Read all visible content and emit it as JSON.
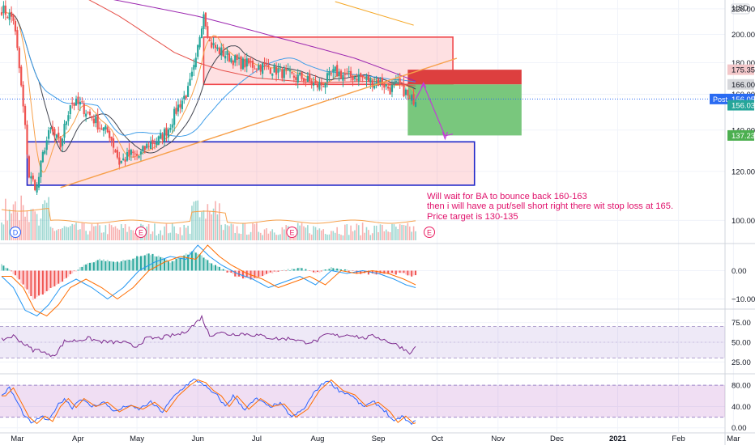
{
  "chart_data": {
    "type": "candlestick",
    "currency": "USD",
    "price_axis": {
      "range": [
        92,
        226
      ],
      "ticks": [
        100,
        120,
        140,
        160,
        180,
        200,
        220
      ],
      "scale": "log"
    },
    "months": [
      {
        "label": "Mar",
        "day": 8
      },
      {
        "label": "Apr",
        "day": 39
      },
      {
        "label": "May",
        "day": 69
      },
      {
        "label": "Jun",
        "day": 100
      },
      {
        "label": "Jul",
        "day": 130
      },
      {
        "label": "Aug",
        "day": 161
      },
      {
        "label": "Sep",
        "day": 192
      },
      {
        "label": "Oct",
        "day": 222
      },
      {
        "label": "Nov",
        "day": 253
      },
      {
        "label": "Dec",
        "day": 283
      },
      {
        "label": "2021",
        "day": 314
      },
      {
        "label": "Feb",
        "day": 345
      },
      {
        "label": "Mar",
        "day": 373
      }
    ],
    "price_key": [
      [
        0,
        220
      ],
      [
        6,
        212
      ],
      [
        11,
        152
      ],
      [
        14,
        118
      ],
      [
        18,
        113
      ],
      [
        22,
        132
      ],
      [
        25,
        140
      ],
      [
        30,
        132
      ],
      [
        35,
        155
      ],
      [
        40,
        154
      ],
      [
        45,
        148
      ],
      [
        50,
        142
      ],
      [
        55,
        138
      ],
      [
        60,
        124
      ],
      [
        66,
        128
      ],
      [
        70,
        127
      ],
      [
        75,
        133
      ],
      [
        80,
        135
      ],
      [
        85,
        141
      ],
      [
        90,
        153
      ],
      [
        95,
        162
      ],
      [
        99,
        180
      ],
      [
        101,
        200
      ],
      [
        103,
        218
      ],
      [
        106,
        194
      ],
      [
        110,
        189
      ],
      [
        116,
        184
      ],
      [
        121,
        180
      ],
      [
        130,
        178
      ],
      [
        136,
        177
      ],
      [
        142,
        174
      ],
      [
        148,
        171
      ],
      [
        154,
        170
      ],
      [
        160,
        165
      ],
      [
        163,
        166
      ],
      [
        170,
        174
      ],
      [
        176,
        171
      ],
      [
        182,
        171
      ],
      [
        188,
        168
      ],
      [
        194,
        167
      ],
      [
        198,
        163
      ],
      [
        202,
        166
      ],
      [
        206,
        161
      ],
      [
        208,
        156
      ],
      [
        211,
        158
      ]
    ],
    "candle_count": 212,
    "macd_key": [
      [
        0,
        -2
      ],
      [
        6,
        -6
      ],
      [
        12,
        -14
      ],
      [
        18,
        -16
      ],
      [
        24,
        -12
      ],
      [
        30,
        -6
      ],
      [
        38,
        -3
      ],
      [
        46,
        -6
      ],
      [
        54,
        -10
      ],
      [
        62,
        -6
      ],
      [
        70,
        0
      ],
      [
        78,
        3
      ],
      [
        86,
        5
      ],
      [
        94,
        4
      ],
      [
        100,
        9
      ],
      [
        106,
        5
      ],
      [
        112,
        2
      ],
      [
        120,
        -1
      ],
      [
        128,
        -3
      ],
      [
        136,
        -6
      ],
      [
        144,
        -4
      ],
      [
        152,
        -2
      ],
      [
        160,
        -5
      ],
      [
        168,
        0
      ],
      [
        176,
        -1
      ],
      [
        184,
        0
      ],
      [
        192,
        -1
      ],
      [
        200,
        -3
      ],
      [
        206,
        -5
      ],
      [
        211,
        -6
      ]
    ],
    "macd_hist_key": [
      [
        0,
        2
      ],
      [
        6,
        -1
      ],
      [
        12,
        -6
      ],
      [
        16,
        -10
      ],
      [
        22,
        -8
      ],
      [
        28,
        -5
      ],
      [
        34,
        -2
      ],
      [
        42,
        2
      ],
      [
        50,
        4
      ],
      [
        58,
        3
      ],
      [
        66,
        4
      ],
      [
        74,
        6
      ],
      [
        80,
        5
      ],
      [
        86,
        3
      ],
      [
        92,
        5
      ],
      [
        98,
        7
      ],
      [
        102,
        5
      ],
      [
        108,
        2
      ],
      [
        114,
        0
      ],
      [
        120,
        -2
      ],
      [
        128,
        -3
      ],
      [
        136,
        -1
      ],
      [
        144,
        0
      ],
      [
        152,
        1
      ],
      [
        160,
        -1
      ],
      [
        168,
        1
      ],
      [
        176,
        0
      ],
      [
        184,
        -1
      ],
      [
        190,
        -1
      ],
      [
        196,
        -1
      ],
      [
        204,
        -1
      ],
      [
        211,
        -2
      ]
    ],
    "macd_axis": {
      "range": [
        -13,
        9
      ],
      "ticks": [
        -10,
        0
      ]
    },
    "rsi_key": [
      [
        0,
        53
      ],
      [
        6,
        58
      ],
      [
        12,
        47
      ],
      [
        16,
        40
      ],
      [
        20,
        40
      ],
      [
        24,
        33
      ],
      [
        28,
        36
      ],
      [
        32,
        51
      ],
      [
        38,
        52
      ],
      [
        44,
        55
      ],
      [
        50,
        51
      ],
      [
        56,
        50
      ],
      [
        62,
        50
      ],
      [
        68,
        44
      ],
      [
        74,
        55
      ],
      [
        80,
        55
      ],
      [
        86,
        58
      ],
      [
        92,
        61
      ],
      [
        98,
        72
      ],
      [
        102,
        82
      ],
      [
        106,
        58
      ],
      [
        110,
        63
      ],
      [
        116,
        60
      ],
      [
        122,
        61
      ],
      [
        130,
        59
      ],
      [
        136,
        56
      ],
      [
        142,
        54
      ],
      [
        148,
        55
      ],
      [
        154,
        50
      ],
      [
        160,
        51
      ],
      [
        166,
        60
      ],
      [
        172,
        58
      ],
      [
        178,
        60
      ],
      [
        184,
        55
      ],
      [
        190,
        58
      ],
      [
        196,
        52
      ],
      [
        202,
        46
      ],
      [
        206,
        40
      ],
      [
        209,
        36
      ],
      [
        211,
        46
      ]
    ],
    "rsi_axis": {
      "range": [
        12,
        90
      ],
      "ticks": [
        25,
        50,
        75
      ],
      "band": [
        30,
        70
      ]
    },
    "stoch_key": [
      [
        0,
        60
      ],
      [
        4,
        75
      ],
      [
        8,
        48
      ],
      [
        12,
        20
      ],
      [
        16,
        8
      ],
      [
        20,
        22
      ],
      [
        24,
        12
      ],
      [
        28,
        40
      ],
      [
        32,
        55
      ],
      [
        36,
        38
      ],
      [
        40,
        55
      ],
      [
        46,
        40
      ],
      [
        52,
        48
      ],
      [
        58,
        30
      ],
      [
        64,
        42
      ],
      [
        70,
        35
      ],
      [
        76,
        48
      ],
      [
        82,
        30
      ],
      [
        88,
        60
      ],
      [
        94,
        80
      ],
      [
        98,
        90
      ],
      [
        102,
        85
      ],
      [
        106,
        70
      ],
      [
        110,
        60
      ],
      [
        114,
        40
      ],
      [
        118,
        60
      ],
      [
        124,
        35
      ],
      [
        130,
        55
      ],
      [
        136,
        40
      ],
      [
        142,
        45
      ],
      [
        148,
        20
      ],
      [
        154,
        35
      ],
      [
        160,
        70
      ],
      [
        166,
        90
      ],
      [
        172,
        70
      ],
      [
        178,
        62
      ],
      [
        184,
        40
      ],
      [
        190,
        48
      ],
      [
        196,
        30
      ],
      [
        200,
        10
      ],
      [
        204,
        22
      ],
      [
        208,
        8
      ],
      [
        211,
        12
      ]
    ],
    "stoch_axis": {
      "range": [
        -8,
        100
      ],
      "ticks": [
        0,
        40,
        80
      ],
      "band": [
        20,
        80
      ]
    },
    "zones": [
      {
        "name": "upper-resistance-box",
        "d0": 103,
        "d1": 230,
        "p_top": 198,
        "p_bot": 166,
        "stroke": "#f0474b",
        "fill": "rgba(247,82,95,0.18)"
      },
      {
        "name": "lower-support-box",
        "d0": 13,
        "d1": 241,
        "p_top": 134,
        "p_bot": 114,
        "stroke": "#1d24c7",
        "fill": "rgba(247,82,95,0.18)"
      }
    ],
    "short_position": {
      "d0": 207,
      "d1": 265,
      "entry": 166,
      "stop": 175.35,
      "target": 137.23
    },
    "labels": [
      {
        "text": "175.35",
        "price": 175.35,
        "fg": "#131722",
        "bg": "#f3c7c9"
      },
      {
        "text": "166.00",
        "price": 166.0,
        "fg": "#131722",
        "bg": "#d7d8dc"
      },
      {
        "text": "Post",
        "value": "156.05",
        "price": 157.2,
        "fg": "#ffffff",
        "bg": "#2a6bf2"
      },
      {
        "text": "156.03",
        "price": 153.6,
        "fg": "#ffffff",
        "bg": "#26a69a"
      },
      {
        "text": "137.23",
        "price": 137.23,
        "fg": "#ffffff",
        "bg": "#4caf50"
      }
    ],
    "events": [
      {
        "text": "D",
        "day": 7,
        "color": "#2962ff"
      },
      {
        "text": "E",
        "day": 71,
        "color": "#e91e63"
      },
      {
        "text": "E",
        "day": 148,
        "color": "#e91e63"
      },
      {
        "text": "E",
        "day": 218,
        "color": "#e91e63"
      }
    ],
    "annotation": "Will wait for BA to bounce back 160-163\nthen i will have a put/sell short right there wit stop loss at 165.\nPrice target is 130-135",
    "colors": {
      "up": "#26a69a",
      "down": "#ef5350",
      "ma_red": "#e65049",
      "ma_black": "#434651",
      "ma_blue": "#3f9ee8",
      "ma_orange": "#f7a04a",
      "ma_purple": "#9c27b0",
      "ma_yellow": "#f5a623",
      "rsi": "#7e2c8f",
      "stoch_k": "#2962ff",
      "stoch_d": "#ff6d00",
      "arrow": "#c43bd8",
      "annotation": "#e0116b"
    }
  }
}
